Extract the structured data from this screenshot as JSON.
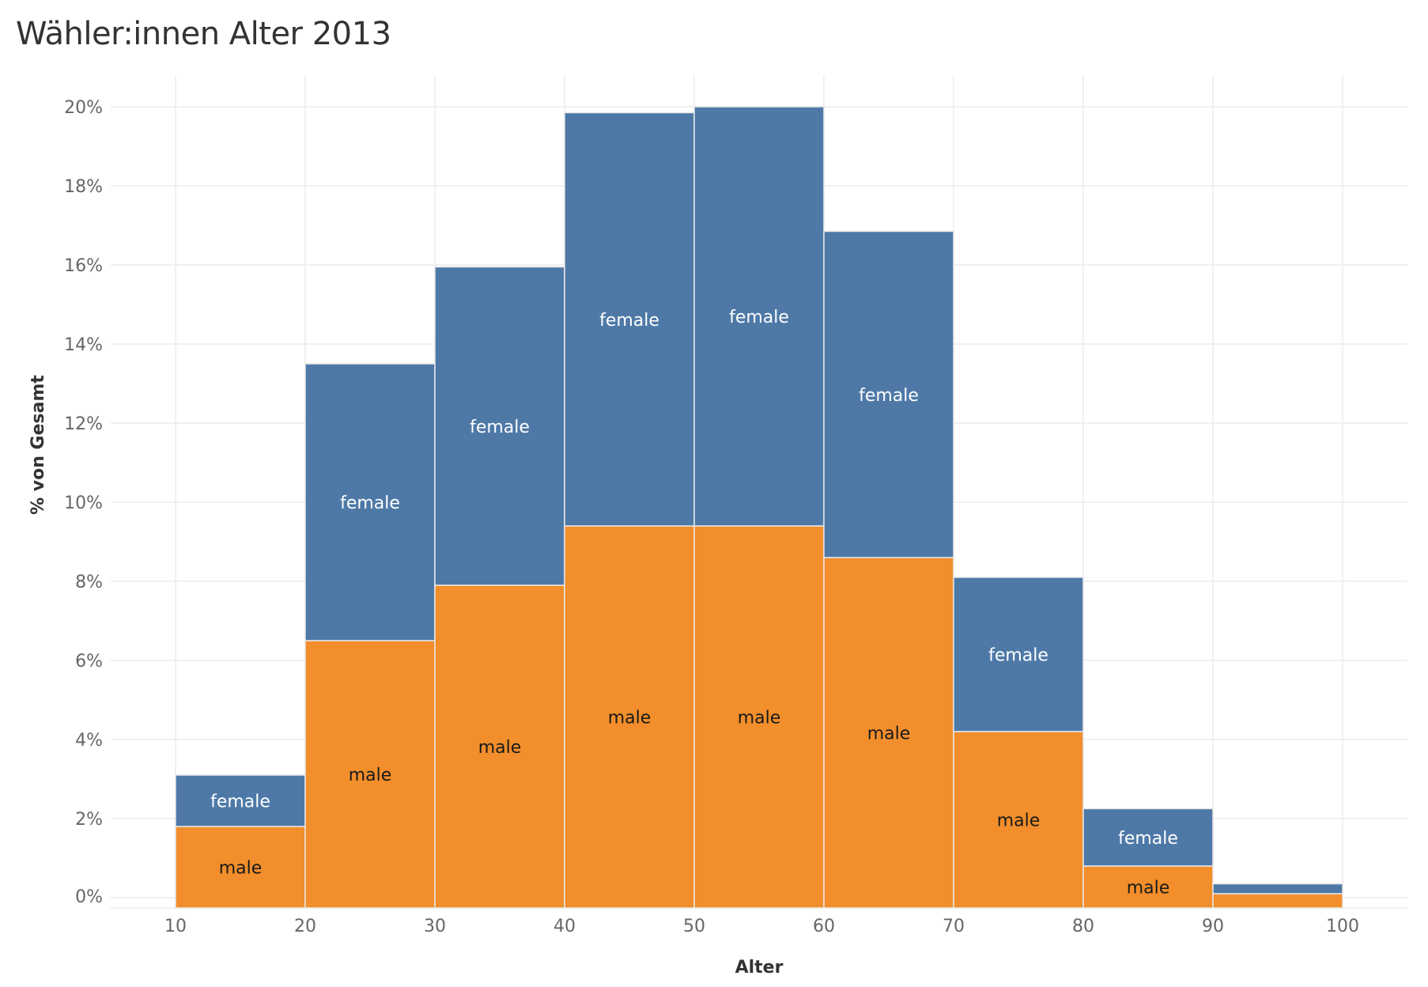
{
  "chart_data": {
    "type": "bar",
    "stacked": true,
    "title": "Wähler:innen Alter 2013",
    "xlabel": "Alter",
    "ylabel": "% von Gesamt",
    "xlim": [
      5,
      105
    ],
    "ylim": [
      -0.3,
      20.8
    ],
    "x_ticks": [
      10,
      20,
      30,
      40,
      50,
      60,
      70,
      80,
      90,
      100
    ],
    "y_ticks": [
      0,
      2,
      4,
      6,
      8,
      10,
      12,
      14,
      16,
      18,
      20
    ],
    "y_tick_format": "%",
    "grid": true,
    "legend": "none",
    "bins": [
      {
        "from": 10,
        "to": 20
      },
      {
        "from": 20,
        "to": 30
      },
      {
        "from": 30,
        "to": 40
      },
      {
        "from": 40,
        "to": 50
      },
      {
        "from": 50,
        "to": 60
      },
      {
        "from": 60,
        "to": 70
      },
      {
        "from": 70,
        "to": 80
      },
      {
        "from": 80,
        "to": 90
      },
      {
        "from": 90,
        "to": 100
      }
    ],
    "series": [
      {
        "name": "male",
        "color": "#f28e2b",
        "label_color": "#1a1a1a",
        "values": [
          1.8,
          6.5,
          7.9,
          9.4,
          9.4,
          8.6,
          4.2,
          0.8,
          0.1
        ],
        "labels": [
          "male",
          "male",
          "male",
          "male",
          "male",
          "male",
          "male",
          "male",
          ""
        ]
      },
      {
        "name": "female",
        "color": "#4e79a7",
        "label_color": "#ffffff",
        "values": [
          1.3,
          7.0,
          8.05,
          10.45,
          10.6,
          8.25,
          3.9,
          1.45,
          0.25
        ],
        "labels": [
          "female",
          "female",
          "female",
          "female",
          "female",
          "female",
          "female",
          "female",
          ""
        ]
      }
    ]
  }
}
